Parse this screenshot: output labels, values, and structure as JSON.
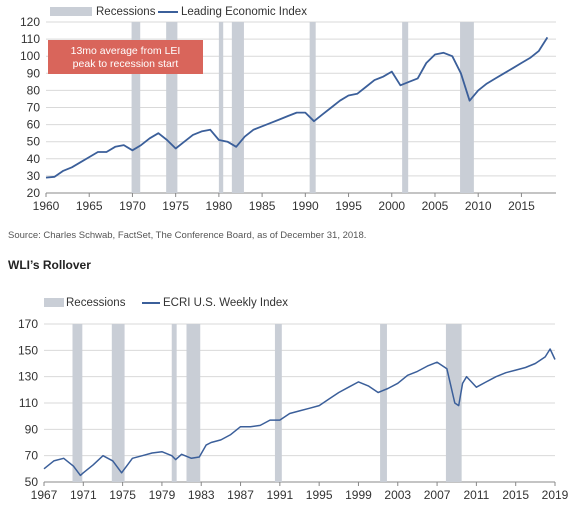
{
  "source_note": "Source: Charles Schwab, FactSet, The Conference Board, as of December 31, 2018.",
  "section_title": "WLI’s Rollover",
  "colors": {
    "line": "#3b5f9a",
    "recession": "#c9ced6",
    "grid": "#d9d9d9",
    "annotation_bg": "#d9655b",
    "annotation_text": "#ffffff"
  },
  "chart_data": [
    {
      "type": "line",
      "title": "",
      "legend": {
        "position": "top-left",
        "recession_label": "Recessions",
        "series_label": "Leading Economic Index"
      },
      "annotation": {
        "line1": "13mo average from LEI",
        "line2": "peak to recession start"
      },
      "xlim": [
        1960,
        2019
      ],
      "ylim": [
        20,
        120
      ],
      "x_ticks": [
        1960,
        1965,
        1970,
        1975,
        1980,
        1985,
        1990,
        1995,
        2000,
        2005,
        2010,
        2015
      ],
      "y_ticks": [
        20,
        30,
        40,
        50,
        60,
        70,
        80,
        90,
        100,
        110,
        120
      ],
      "recessions": [
        [
          1969.9,
          1970.9
        ],
        [
          1973.9,
          1975.2
        ],
        [
          1980.0,
          1980.5
        ],
        [
          1981.5,
          1982.9
        ],
        [
          1990.5,
          1991.2
        ],
        [
          2001.2,
          2001.9
        ],
        [
          2007.9,
          2009.5
        ]
      ],
      "series": [
        {
          "name": "Leading Economic Index",
          "x": [
            1960,
            1961,
            1962,
            1963,
            1964,
            1965,
            1966,
            1967,
            1968,
            1969,
            1970,
            1971,
            1972,
            1973,
            1974,
            1975,
            1976,
            1977,
            1978,
            1979,
            1980,
            1981,
            1982,
            1983,
            1984,
            1985,
            1986,
            1987,
            1988,
            1989,
            1990,
            1991,
            1992,
            1993,
            1994,
            1995,
            1996,
            1997,
            1998,
            1999,
            2000,
            2001,
            2002,
            2003,
            2004,
            2005,
            2006,
            2007,
            2008,
            2009,
            2010,
            2011,
            2012,
            2013,
            2014,
            2015,
            2016,
            2017,
            2018
          ],
          "values": [
            29,
            29.5,
            33,
            35,
            38,
            41,
            44,
            44,
            47,
            48,
            45,
            48,
            52,
            55,
            51,
            46,
            50,
            54,
            56,
            57,
            51,
            50,
            47,
            53,
            57,
            59,
            61,
            63,
            65,
            67,
            67,
            62,
            66,
            70,
            74,
            77,
            78,
            82,
            86,
            88,
            91,
            83,
            85,
            87,
            96,
            101,
            102,
            100,
            90,
            74,
            80,
            84,
            87,
            90,
            93,
            96,
            99,
            103,
            111
          ]
        }
      ]
    },
    {
      "type": "line",
      "title": "",
      "legend": {
        "position": "top-left",
        "recession_label": "Recessions",
        "series_label": "ECRI U.S. Weekly Index"
      },
      "xlim": [
        1967,
        2019
      ],
      "ylim": [
        50,
        170
      ],
      "x_ticks": [
        1967,
        1971,
        1975,
        1979,
        1983,
        1987,
        1991,
        1995,
        1999,
        2003,
        2007,
        2011,
        2015,
        2019
      ],
      "y_ticks": [
        50,
        70,
        90,
        110,
        130,
        150,
        170
      ],
      "recessions": [
        [
          1969.9,
          1970.9
        ],
        [
          1973.9,
          1975.2
        ],
        [
          1980.0,
          1980.5
        ],
        [
          1981.5,
          1982.9
        ],
        [
          1990.5,
          1991.2
        ],
        [
          2001.2,
          2001.9
        ],
        [
          2007.9,
          2009.5
        ]
      ],
      "series": [
        {
          "name": "ECRI U.S. Weekly Index",
          "x": [
            1967,
            1968,
            1969,
            1970,
            1970.7,
            1971,
            1972,
            1973,
            1974,
            1974.9,
            1975.5,
            1976,
            1977,
            1978,
            1979,
            1980,
            1980.4,
            1981,
            1982,
            1982.8,
            1983.5,
            1984,
            1985,
            1986,
            1987,
            1988,
            1989,
            1990,
            1991,
            1992,
            1993,
            1994,
            1995,
            1996,
            1997,
            1998,
            1999,
            2000,
            2001,
            2002,
            2003,
            2004,
            2005,
            2006,
            2007,
            2008,
            2008.8,
            2009.2,
            2009.6,
            2010,
            2011,
            2012,
            2013,
            2014,
            2015,
            2016,
            2017,
            2018,
            2018.5,
            2019
          ],
          "values": [
            60,
            66,
            68,
            62,
            55,
            57,
            63,
            70,
            66,
            57,
            63,
            68,
            70,
            72,
            73,
            70,
            67,
            71,
            68,
            69,
            78,
            80,
            82,
            86,
            92,
            92,
            93,
            97,
            97,
            102,
            104,
            106,
            108,
            113,
            118,
            122,
            126,
            123,
            118,
            121,
            125,
            131,
            134,
            138,
            141,
            136,
            110,
            108,
            125,
            130,
            122,
            126,
            130,
            133,
            135,
            137,
            140,
            145,
            151,
            143
          ]
        }
      ]
    }
  ]
}
